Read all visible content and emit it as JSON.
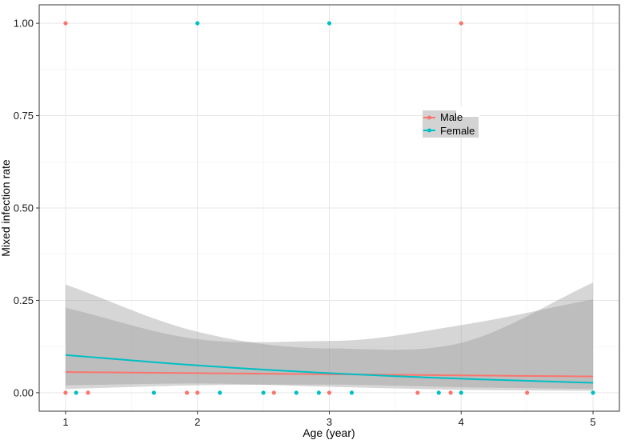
{
  "chart_data": {
    "type": "scatter",
    "xlabel": "Age (year)",
    "ylabel": "Mixed infection rate",
    "xlim": [
      0.8,
      5.2
    ],
    "ylim": [
      -0.05,
      1.05
    ],
    "x_ticks": [
      1,
      2,
      3,
      4,
      5
    ],
    "x_tick_labels": [
      "1",
      "2",
      "3",
      "4",
      "5"
    ],
    "y_ticks": [
      0.0,
      0.25,
      0.5,
      0.75,
      1.0
    ],
    "y_tick_labels": [
      "0.00",
      "0.25",
      "0.50",
      "0.75",
      "1.00"
    ],
    "grid": true,
    "legend_position": "upper-right-center",
    "series": [
      {
        "name": "Male",
        "color": "#F8766D",
        "points": [
          {
            "x": 1.0,
            "y": 1.0
          },
          {
            "x": 4.0,
            "y": 1.0
          },
          {
            "x": 1.0,
            "y": 0.0
          },
          {
            "x": 1.17,
            "y": 0.0
          },
          {
            "x": 1.92,
            "y": 0.0
          },
          {
            "x": 2.0,
            "y": 0.0
          },
          {
            "x": 2.58,
            "y": 0.0
          },
          {
            "x": 3.0,
            "y": 0.0
          },
          {
            "x": 3.67,
            "y": 0.0
          },
          {
            "x": 3.92,
            "y": 0.0
          },
          {
            "x": 4.5,
            "y": 0.0
          }
        ],
        "fit": [
          {
            "x": 1.0,
            "y": 0.056,
            "lo": 0.01,
            "hi": 0.23
          },
          {
            "x": 2.0,
            "y": 0.053,
            "lo": 0.02,
            "hi": 0.145
          },
          {
            "x": 3.0,
            "y": 0.05,
            "lo": 0.022,
            "hi": 0.14
          },
          {
            "x": 4.0,
            "y": 0.047,
            "lo": 0.015,
            "hi": 0.183
          },
          {
            "x": 5.0,
            "y": 0.044,
            "lo": 0.01,
            "hi": 0.253
          }
        ]
      },
      {
        "name": "Female",
        "color": "#00BFC4",
        "points": [
          {
            "x": 2.0,
            "y": 1.0
          },
          {
            "x": 3.0,
            "y": 1.0
          },
          {
            "x": 1.08,
            "y": 0.0
          },
          {
            "x": 1.67,
            "y": 0.0
          },
          {
            "x": 2.17,
            "y": 0.0
          },
          {
            "x": 2.5,
            "y": 0.0
          },
          {
            "x": 2.75,
            "y": 0.0
          },
          {
            "x": 2.92,
            "y": 0.0
          },
          {
            "x": 3.17,
            "y": 0.0
          },
          {
            "x": 3.83,
            "y": 0.0
          },
          {
            "x": 4.0,
            "y": 0.0
          },
          {
            "x": 5.0,
            "y": 0.0
          }
        ],
        "fit": [
          {
            "x": 1.0,
            "y": 0.102,
            "lo": 0.02,
            "hi": 0.293
          },
          {
            "x": 2.0,
            "y": 0.074,
            "lo": 0.025,
            "hi": 0.165
          },
          {
            "x": 3.0,
            "y": 0.053,
            "lo": 0.016,
            "hi": 0.12
          },
          {
            "x": 4.0,
            "y": 0.038,
            "lo": 0.008,
            "hi": 0.135
          },
          {
            "x": 5.0,
            "y": 0.027,
            "lo": 0.005,
            "hi": 0.298
          }
        ]
      }
    ]
  }
}
